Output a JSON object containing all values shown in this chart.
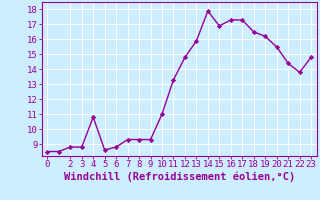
{
  "x": [
    0,
    1,
    2,
    3,
    4,
    5,
    6,
    7,
    8,
    9,
    10,
    11,
    12,
    13,
    14,
    15,
    16,
    17,
    18,
    19,
    20,
    21,
    22,
    23
  ],
  "y": [
    8.5,
    8.5,
    8.8,
    8.8,
    10.8,
    8.6,
    8.8,
    9.3,
    9.3,
    9.3,
    11.0,
    13.3,
    14.8,
    15.9,
    17.9,
    16.9,
    17.3,
    17.3,
    16.5,
    16.2,
    15.5,
    14.4,
    13.8,
    14.8
  ],
  "line_color": "#990099",
  "marker": "D",
  "markersize": 2.2,
  "linewidth": 1.0,
  "xlabel": "Windchill (Refroidissement éolien,°C)",
  "xlim": [
    -0.5,
    23.5
  ],
  "ylim": [
    8.2,
    18.5
  ],
  "yticks": [
    9,
    10,
    11,
    12,
    13,
    14,
    15,
    16,
    17,
    18
  ],
  "xticks": [
    0,
    2,
    3,
    4,
    5,
    6,
    7,
    8,
    9,
    10,
    11,
    12,
    13,
    14,
    15,
    16,
    17,
    18,
    19,
    20,
    21,
    22,
    23
  ],
  "bg_color": "#cceeff",
  "grid_color": "#aaddcc",
  "tick_label_fontsize": 6.5,
  "xlabel_fontsize": 7.5,
  "label_color": "#990099"
}
